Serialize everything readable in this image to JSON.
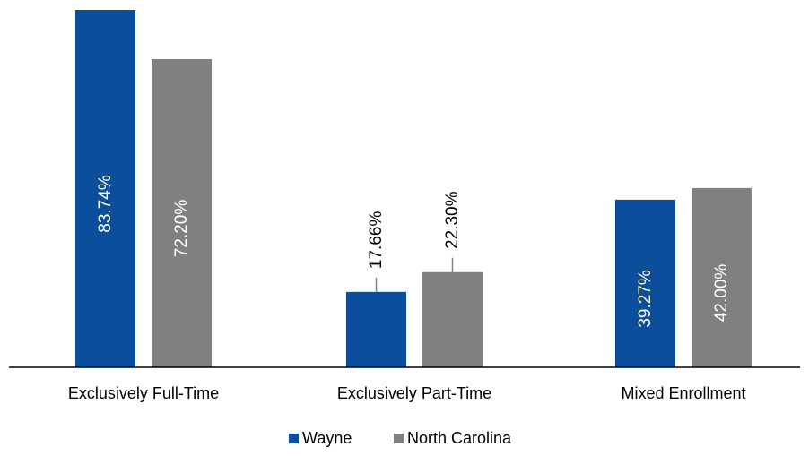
{
  "chart_data": {
    "type": "bar",
    "categories": [
      "Exclusively Full-Time",
      "Exclusively Part-Time",
      "Mixed Enrollment"
    ],
    "series": [
      {
        "name": "Wayne",
        "color": "#0b4f9c",
        "values": [
          83.74,
          17.66,
          39.27
        ],
        "labels": [
          "83.74%",
          "17.66%",
          "39.27%"
        ]
      },
      {
        "name": "North Carolina",
        "color": "#808080",
        "values": [
          72.2,
          22.3,
          42.0
        ],
        "labels": [
          "72.20%",
          "22.30%",
          "42.00%"
        ]
      }
    ],
    "ylim": [
      0,
      83.74
    ],
    "grid": false,
    "legend_position": "bottom",
    "title": "",
    "xlabel": "",
    "ylabel": ""
  }
}
